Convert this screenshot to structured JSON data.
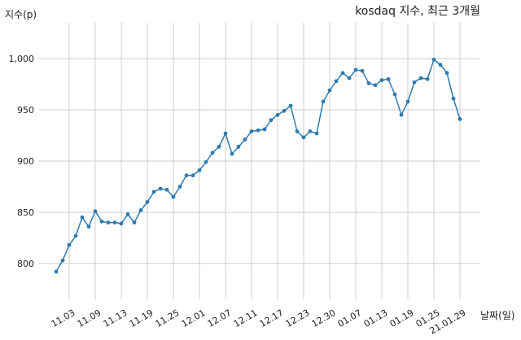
{
  "chart_data": {
    "type": "line",
    "title": "kosdaq 지수, 최근 3개월",
    "xlabel": "날짜(일)",
    "ylabel": "지수(p)",
    "ylim": [
      765,
      1035
    ],
    "yticks": [
      800,
      850,
      900,
      950,
      1000
    ],
    "ytick_labels": [
      "800",
      "850",
      "900",
      "950",
      "1,000"
    ],
    "grid": true,
    "color": "#2e7bb0",
    "x_tick_labels": [
      "11.03",
      "11.09",
      "11.13",
      "11.19",
      "11.25",
      "12.01",
      "12.07",
      "12.11",
      "12.17",
      "12.23",
      "12.30",
      "01.07",
      "01.13",
      "01.19",
      "01.25",
      "21.01.29"
    ],
    "x_tick_indices": [
      2,
      6,
      10,
      14,
      18,
      22,
      26,
      30,
      34,
      38,
      42,
      46,
      50,
      54,
      58,
      62
    ],
    "values": [
      792,
      803,
      818,
      827,
      845,
      836,
      851,
      841,
      840,
      840,
      839,
      848,
      840,
      852,
      860,
      870,
      873,
      872,
      865,
      875,
      886,
      886,
      891,
      899,
      908,
      914,
      927,
      907,
      914,
      921,
      929,
      930,
      931,
      940,
      945,
      949,
      954,
      929,
      923,
      929,
      927,
      958,
      969,
      978,
      986,
      981,
      989,
      988,
      976,
      974,
      979,
      980,
      965,
      945,
      958,
      977,
      981,
      980,
      999,
      994,
      986,
      961,
      941
    ]
  }
}
